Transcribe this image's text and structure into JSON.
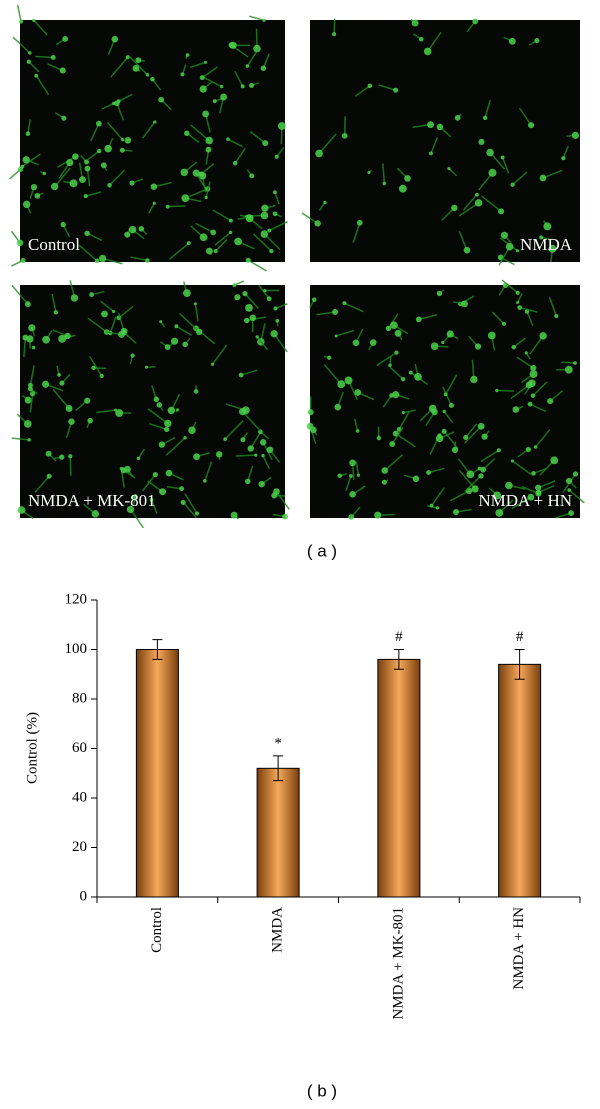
{
  "panels": [
    {
      "label": "Control"
    },
    {
      "label": "NMDA"
    },
    {
      "label": "NMDA + MK-801"
    },
    {
      "label": "NMDA + HN"
    }
  ],
  "panel_a_caption": "( a )",
  "panel_b_caption": "( b )",
  "chart_data": {
    "type": "bar",
    "y_label": "Control (%)",
    "categories": [
      "Control",
      "NMDA",
      "NMDA + MK-801",
      "NMDA + HN"
    ],
    "values": [
      100,
      52,
      96,
      94
    ],
    "errors": [
      4,
      5,
      4,
      6
    ],
    "significance": [
      null,
      "*",
      "#",
      "#"
    ],
    "color": "#f0963c",
    "ylim": [
      0,
      120
    ],
    "yticks": [
      0,
      20,
      40,
      60,
      80,
      100,
      120
    ]
  }
}
